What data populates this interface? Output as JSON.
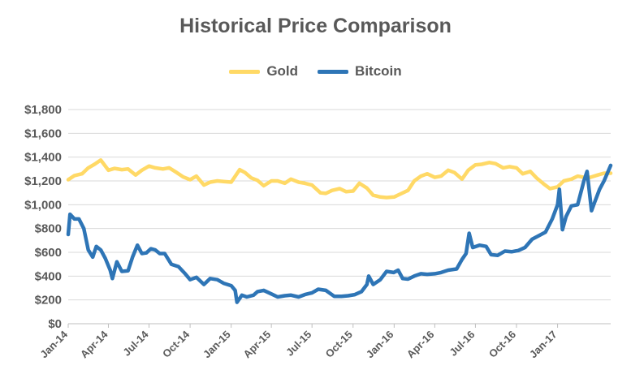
{
  "chart_data": {
    "type": "line",
    "title": "Historical Price Comparison",
    "xlabel": "",
    "ylabel": "",
    "x_ticks": [
      "Jan-14",
      "Apr-14",
      "Jul-14",
      "Oct-14",
      "Jan-15",
      "Apr-15",
      "Jul-15",
      "Oct-15",
      "Jan-16",
      "Apr-16",
      "Jul-16",
      "Oct-16",
      "Jan-17"
    ],
    "y_ticks": [
      "$0",
      "$200",
      "$400",
      "$600",
      "$800",
      "$1,000",
      "$1,200",
      "$1,400",
      "$1,600",
      "$1,800"
    ],
    "ylim": [
      0,
      1800
    ],
    "xlim": [
      "2014-01-01",
      "2017-04-30"
    ],
    "grid": true,
    "legend_position": "top",
    "series": [
      {
        "name": "Gold",
        "color": "#FFD966",
        "points": [
          [
            "2014-01-01",
            1210
          ],
          [
            "2014-01-15",
            1245
          ],
          [
            "2014-02-01",
            1260
          ],
          [
            "2014-02-15",
            1310
          ],
          [
            "2014-03-01",
            1340
          ],
          [
            "2014-03-15",
            1375
          ],
          [
            "2014-04-01",
            1290
          ],
          [
            "2014-04-15",
            1305
          ],
          [
            "2014-05-01",
            1295
          ],
          [
            "2014-05-15",
            1300
          ],
          [
            "2014-06-01",
            1250
          ],
          [
            "2014-06-15",
            1290
          ],
          [
            "2014-07-01",
            1325
          ],
          [
            "2014-07-15",
            1310
          ],
          [
            "2014-08-01",
            1300
          ],
          [
            "2014-08-15",
            1310
          ],
          [
            "2014-09-01",
            1270
          ],
          [
            "2014-09-15",
            1235
          ],
          [
            "2014-10-01",
            1210
          ],
          [
            "2014-10-15",
            1240
          ],
          [
            "2014-11-01",
            1165
          ],
          [
            "2014-11-15",
            1190
          ],
          [
            "2014-12-01",
            1200
          ],
          [
            "2014-12-15",
            1195
          ],
          [
            "2015-01-01",
            1190
          ],
          [
            "2015-01-20",
            1295
          ],
          [
            "2015-02-01",
            1270
          ],
          [
            "2015-02-15",
            1225
          ],
          [
            "2015-03-01",
            1205
          ],
          [
            "2015-03-15",
            1160
          ],
          [
            "2015-04-01",
            1200
          ],
          [
            "2015-04-15",
            1200
          ],
          [
            "2015-05-01",
            1180
          ],
          [
            "2015-05-15",
            1215
          ],
          [
            "2015-06-01",
            1190
          ],
          [
            "2015-06-15",
            1180
          ],
          [
            "2015-07-01",
            1165
          ],
          [
            "2015-07-20",
            1100
          ],
          [
            "2015-08-01",
            1095
          ],
          [
            "2015-08-15",
            1120
          ],
          [
            "2015-09-01",
            1135
          ],
          [
            "2015-09-15",
            1110
          ],
          [
            "2015-10-01",
            1115
          ],
          [
            "2015-10-15",
            1180
          ],
          [
            "2015-11-01",
            1140
          ],
          [
            "2015-11-15",
            1080
          ],
          [
            "2015-12-01",
            1065
          ],
          [
            "2015-12-15",
            1060
          ],
          [
            "2016-01-01",
            1065
          ],
          [
            "2016-01-15",
            1090
          ],
          [
            "2016-02-01",
            1120
          ],
          [
            "2016-02-15",
            1200
          ],
          [
            "2016-03-01",
            1240
          ],
          [
            "2016-03-15",
            1260
          ],
          [
            "2016-04-01",
            1230
          ],
          [
            "2016-04-15",
            1240
          ],
          [
            "2016-05-01",
            1290
          ],
          [
            "2016-05-15",
            1270
          ],
          [
            "2016-06-01",
            1215
          ],
          [
            "2016-06-15",
            1290
          ],
          [
            "2016-07-01",
            1335
          ],
          [
            "2016-07-15",
            1340
          ],
          [
            "2016-08-01",
            1355
          ],
          [
            "2016-08-15",
            1345
          ],
          [
            "2016-09-01",
            1310
          ],
          [
            "2016-09-15",
            1320
          ],
          [
            "2016-10-01",
            1310
          ],
          [
            "2016-10-15",
            1260
          ],
          [
            "2016-11-01",
            1280
          ],
          [
            "2016-11-15",
            1225
          ],
          [
            "2016-12-01",
            1175
          ],
          [
            "2016-12-15",
            1135
          ],
          [
            "2017-01-01",
            1150
          ],
          [
            "2017-01-15",
            1200
          ],
          [
            "2017-02-01",
            1215
          ],
          [
            "2017-02-15",
            1240
          ],
          [
            "2017-03-01",
            1230
          ],
          [
            "2017-03-15",
            1230
          ],
          [
            "2017-04-01",
            1250
          ],
          [
            "2017-04-15",
            1265
          ],
          [
            "2017-04-30",
            1265
          ]
        ]
      },
      {
        "name": "Bitcoin",
        "color": "#2E75B6",
        "points": [
          [
            "2014-01-01",
            750
          ],
          [
            "2014-01-05",
            920
          ],
          [
            "2014-01-15",
            880
          ],
          [
            "2014-01-25",
            880
          ],
          [
            "2014-02-05",
            800
          ],
          [
            "2014-02-15",
            620
          ],
          [
            "2014-02-25",
            560
          ],
          [
            "2014-03-05",
            650
          ],
          [
            "2014-03-15",
            620
          ],
          [
            "2014-03-25",
            550
          ],
          [
            "2014-04-05",
            450
          ],
          [
            "2014-04-10",
            380
          ],
          [
            "2014-04-20",
            520
          ],
          [
            "2014-05-01",
            440
          ],
          [
            "2014-05-15",
            445
          ],
          [
            "2014-05-25",
            560
          ],
          [
            "2014-06-05",
            660
          ],
          [
            "2014-06-15",
            590
          ],
          [
            "2014-06-25",
            595
          ],
          [
            "2014-07-05",
            630
          ],
          [
            "2014-07-15",
            620
          ],
          [
            "2014-07-25",
            590
          ],
          [
            "2014-08-05",
            590
          ],
          [
            "2014-08-20",
            500
          ],
          [
            "2014-09-05",
            480
          ],
          [
            "2014-09-20",
            420
          ],
          [
            "2014-10-01",
            370
          ],
          [
            "2014-10-15",
            390
          ],
          [
            "2014-11-01",
            330
          ],
          [
            "2014-11-15",
            380
          ],
          [
            "2014-12-01",
            370
          ],
          [
            "2014-12-15",
            340
          ],
          [
            "2015-01-01",
            320
          ],
          [
            "2015-01-10",
            280
          ],
          [
            "2015-01-14",
            180
          ],
          [
            "2015-01-25",
            240
          ],
          [
            "2015-02-05",
            225
          ],
          [
            "2015-02-20",
            240
          ],
          [
            "2015-03-01",
            270
          ],
          [
            "2015-03-15",
            280
          ],
          [
            "2015-04-01",
            250
          ],
          [
            "2015-04-15",
            225
          ],
          [
            "2015-05-01",
            235
          ],
          [
            "2015-05-15",
            240
          ],
          [
            "2015-06-01",
            225
          ],
          [
            "2015-06-15",
            245
          ],
          [
            "2015-07-01",
            260
          ],
          [
            "2015-07-15",
            290
          ],
          [
            "2015-08-01",
            280
          ],
          [
            "2015-08-20",
            230
          ],
          [
            "2015-09-05",
            230
          ],
          [
            "2015-09-20",
            235
          ],
          [
            "2015-10-05",
            245
          ],
          [
            "2015-10-20",
            270
          ],
          [
            "2015-11-01",
            330
          ],
          [
            "2015-11-05",
            400
          ],
          [
            "2015-11-15",
            330
          ],
          [
            "2015-12-01",
            370
          ],
          [
            "2015-12-15",
            440
          ],
          [
            "2015-12-31",
            430
          ],
          [
            "2016-01-10",
            450
          ],
          [
            "2016-01-20",
            380
          ],
          [
            "2016-02-01",
            375
          ],
          [
            "2016-02-15",
            400
          ],
          [
            "2016-03-01",
            420
          ],
          [
            "2016-03-15",
            415
          ],
          [
            "2016-04-01",
            420
          ],
          [
            "2016-04-15",
            430
          ],
          [
            "2016-05-01",
            450
          ],
          [
            "2016-05-20",
            460
          ],
          [
            "2016-06-01",
            540
          ],
          [
            "2016-06-10",
            590
          ],
          [
            "2016-06-17",
            760
          ],
          [
            "2016-06-25",
            640
          ],
          [
            "2016-07-10",
            660
          ],
          [
            "2016-07-25",
            650
          ],
          [
            "2016-08-05",
            580
          ],
          [
            "2016-08-20",
            575
          ],
          [
            "2016-09-05",
            610
          ],
          [
            "2016-09-20",
            605
          ],
          [
            "2016-10-05",
            615
          ],
          [
            "2016-10-20",
            640
          ],
          [
            "2016-11-05",
            710
          ],
          [
            "2016-11-20",
            740
          ],
          [
            "2016-12-05",
            770
          ],
          [
            "2016-12-20",
            880
          ],
          [
            "2017-01-01",
            1000
          ],
          [
            "2017-01-05",
            1130
          ],
          [
            "2017-01-12",
            790
          ],
          [
            "2017-01-20",
            900
          ],
          [
            "2017-02-01",
            990
          ],
          [
            "2017-02-15",
            1000
          ],
          [
            "2017-03-01",
            1200
          ],
          [
            "2017-03-08",
            1280
          ],
          [
            "2017-03-18",
            950
          ],
          [
            "2017-03-25",
            1020
          ],
          [
            "2017-04-05",
            1130
          ],
          [
            "2017-04-15",
            1200
          ],
          [
            "2017-04-30",
            1330
          ]
        ]
      }
    ]
  }
}
